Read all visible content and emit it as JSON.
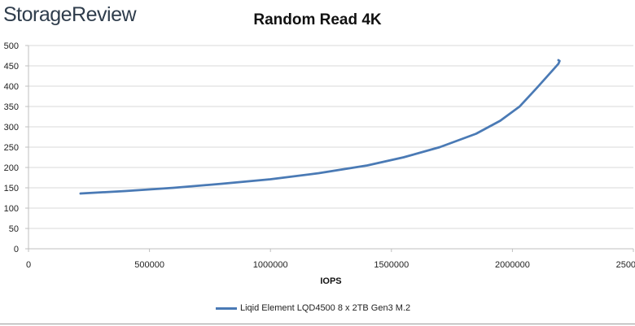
{
  "header": {
    "logo_text": "StorageReview",
    "title": "Random Read 4K"
  },
  "legend": {
    "label": "Liqid Element LQD4500 8 x 2TB Gen3 M.2"
  },
  "colors": {
    "series": "#4a7ab5",
    "grid": "#d9d9d9",
    "axis": "#bfbfbf"
  },
  "chart_data": {
    "type": "line",
    "title": "Random Read 4K",
    "xlabel": "IOPS",
    "ylabel": "",
    "xlim": [
      0,
      2500000
    ],
    "ylim": [
      0,
      500
    ],
    "x_ticks": [
      "0",
      "500000",
      "1000000",
      "1500000",
      "2000000",
      "2500000"
    ],
    "y_ticks": [
      "0",
      "50",
      "100",
      "150",
      "200",
      "250",
      "300",
      "350",
      "400",
      "450",
      "500"
    ],
    "grid": true,
    "legend_position": "bottom",
    "series": [
      {
        "name": "Liqid Element LQD4500 8 x 2TB Gen3 M.2",
        "x": [
          215000,
          400000,
          600000,
          800000,
          1000000,
          1200000,
          1400000,
          1550000,
          1700000,
          1850000,
          1950000,
          2030000,
          2100000,
          2160000,
          2190000,
          2195000,
          2190000
        ],
        "y": [
          136,
          142,
          150,
          160,
          171,
          186,
          205,
          225,
          250,
          283,
          315,
          350,
          395,
          435,
          455,
          462,
          464
        ]
      }
    ]
  }
}
